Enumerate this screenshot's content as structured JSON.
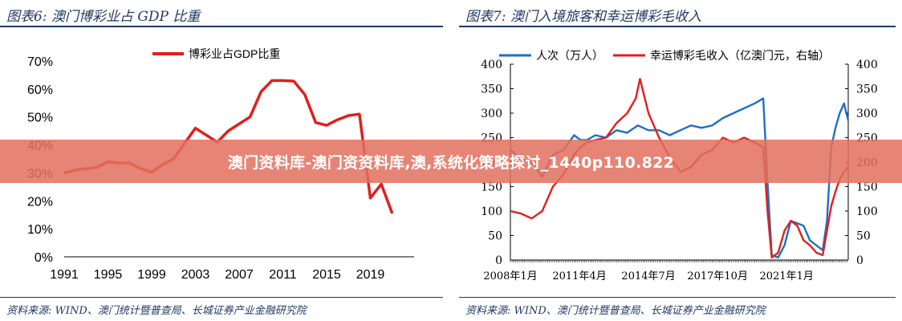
{
  "figures": {
    "left": {
      "title": "图表6:  澳门博彩业占 GDP 比重",
      "source": "资料来源:  WIND、澳门统计暨普查局、长城证券产业金融研究院"
    },
    "right": {
      "title": "图表7:  澳门入境旅客和幸运博彩毛收入",
      "source": "资料来源:  WIND、澳门统计暨普查局、长城证券产业金融研究院"
    }
  },
  "banner": {
    "text": "澳门资料库-澳门资资料库,澳,系统化策略探讨_1440p110.822"
  },
  "colors": {
    "red": "#e11e1e",
    "blue": "#1f6fc5",
    "title": "#1f3864",
    "banner": "#e2705e"
  },
  "chart_data": [
    {
      "type": "line",
      "title": "",
      "legend": {
        "position": "top"
      },
      "xlabel": "",
      "ylabel": "",
      "x_ticks": [
        "1991",
        "1995",
        "1999",
        "2003",
        "2007",
        "2011",
        "2015",
        "2019"
      ],
      "xlim": [
        1991,
        2023
      ],
      "y_ticks": [
        "0%",
        "10%",
        "20%",
        "30%",
        "40%",
        "50%",
        "60%",
        "70%"
      ],
      "ylim": [
        0,
        70
      ],
      "series": [
        {
          "name": "博彩业占GDP比重",
          "color": "#e11e1e",
          "x": [
            1991,
            1992,
            1993,
            1994,
            1995,
            1996,
            1997,
            1998,
            1999,
            2000,
            2001,
            2002,
            2003,
            2004,
            2005,
            2006,
            2007,
            2008,
            2009,
            2010,
            2011,
            2012,
            2013,
            2014,
            2015,
            2016,
            2017,
            2018,
            2019,
            2020,
            2021,
            2022
          ],
          "values": [
            30,
            31,
            31.5,
            32,
            34,
            33.5,
            33.5,
            31.5,
            30.2,
            33,
            35,
            40.5,
            46,
            43.5,
            41,
            45,
            47.5,
            50,
            59,
            63,
            63,
            62.8,
            58,
            48,
            47,
            49,
            50.5,
            51,
            21,
            26,
            15.5,
            null
          ]
        }
      ]
    },
    {
      "type": "line",
      "title": "",
      "legend": {
        "position": "top"
      },
      "xlabel": "",
      "ylabel": "",
      "x_ticks": [
        "2008年1月",
        "2011年4月",
        "2014年7月",
        "2017年10月",
        "2021年1月"
      ],
      "xlim": [
        2008.0,
        2023.9
      ],
      "y_ticks_left": [
        "0",
        "50",
        "100",
        "150",
        "200",
        "250",
        "300",
        "350",
        "400"
      ],
      "y_ticks_right": [
        "0",
        "50",
        "100",
        "150",
        "200",
        "250",
        "300",
        "350",
        "400"
      ],
      "ylim_left": [
        0,
        400
      ],
      "ylim_right": [
        0,
        400
      ],
      "series": [
        {
          "name": "人次（万人）",
          "axis": "left",
          "color": "#1f6fc5",
          "x": [
            2008.0,
            2008.5,
            2009.0,
            2009.5,
            2010.0,
            2010.5,
            2011.0,
            2011.3,
            2011.6,
            2012.0,
            2012.5,
            2013.0,
            2013.5,
            2014.0,
            2014.5,
            2015.0,
            2015.5,
            2016.0,
            2016.5,
            2017.0,
            2017.5,
            2018.0,
            2018.5,
            2019.0,
            2019.5,
            2019.9,
            2020.1,
            2020.3,
            2020.6,
            2020.9,
            2021.2,
            2021.5,
            2021.8,
            2022.1,
            2022.4,
            2022.7,
            2022.9,
            2023.1,
            2023.3,
            2023.5,
            2023.7,
            2023.9
          ],
          "values": [
            225,
            205,
            200,
            170,
            215,
            225,
            255,
            245,
            245,
            255,
            250,
            265,
            260,
            275,
            265,
            265,
            255,
            265,
            275,
            270,
            275,
            290,
            300,
            310,
            320,
            330,
            160,
            10,
            5,
            30,
            80,
            75,
            70,
            40,
            30,
            20,
            80,
            230,
            270,
            300,
            320,
            285
          ]
        },
        {
          "name": "幸运博彩毛收入（亿澳门元，右轴）",
          "axis": "right",
          "color": "#e11e1e",
          "x": [
            2008.0,
            2008.5,
            2009.0,
            2009.5,
            2010.0,
            2010.5,
            2011.0,
            2011.3,
            2011.6,
            2012.0,
            2012.5,
            2013.0,
            2013.5,
            2013.9,
            2014.1,
            2014.5,
            2015.0,
            2015.5,
            2016.0,
            2016.5,
            2017.0,
            2017.5,
            2018.0,
            2018.5,
            2019.0,
            2019.5,
            2019.9,
            2020.1,
            2020.3,
            2020.6,
            2020.9,
            2021.2,
            2021.5,
            2021.8,
            2022.1,
            2022.4,
            2022.7,
            2022.9,
            2023.1,
            2023.3,
            2023.5,
            2023.7,
            2023.9
          ],
          "values": [
            100,
            95,
            85,
            100,
            150,
            175,
            215,
            230,
            240,
            245,
            250,
            280,
            300,
            330,
            370,
            300,
            250,
            210,
            180,
            190,
            215,
            225,
            250,
            240,
            250,
            240,
            230,
            100,
            5,
            15,
            60,
            80,
            70,
            40,
            30,
            15,
            10,
            60,
            110,
            140,
            165,
            180,
            190
          ]
        }
      ]
    }
  ]
}
